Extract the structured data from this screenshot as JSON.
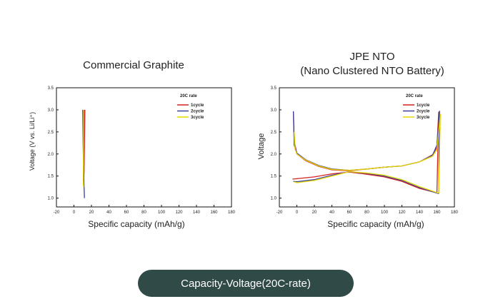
{
  "chart_data": [
    {
      "type": "line",
      "title": "Commercial Graphite",
      "xlabel": "Specific capacity (mAh/g)",
      "ylabel": "Voltage (V vs. Li/Li⁺)",
      "xlim": [
        -20,
        180
      ],
      "ylim": [
        0.8,
        3.5
      ],
      "xticks": [
        "-20",
        "0",
        "20",
        "40",
        "60",
        "80",
        "100",
        "120",
        "140",
        "160",
        "180"
      ],
      "yticks": [
        "1.0",
        "1.5",
        "2.0",
        "2.5",
        "3.0",
        "3.5"
      ],
      "legend_title": "20C rate",
      "legend_position": "top-right",
      "series": [
        {
          "name": "1cycle",
          "color": "#d42020",
          "points": [
            [
              12,
              3.0
            ],
            [
              12,
              2.2
            ],
            [
              11.5,
              1.7
            ],
            [
              11,
              1.3
            ],
            [
              11.5,
              1.6
            ],
            [
              12,
              2.2
            ],
            [
              12.5,
              3.0
            ]
          ]
        },
        {
          "name": "2cycle",
          "color": "#3a3f9e",
          "points": [
            [
              10,
              3.0
            ],
            [
              10.5,
              2.2
            ],
            [
              11,
              1.6
            ],
            [
              12,
              1.0
            ]
          ]
        },
        {
          "name": "3cycle",
          "color": "#e8d800",
          "points": [
            [
              11,
              3.0
            ],
            [
              11,
              2.3
            ],
            [
              10.5,
              1.4
            ],
            [
              11,
              1.25
            ]
          ]
        }
      ]
    },
    {
      "type": "line",
      "title_line1": "JPE NTO",
      "title_line2": "(Nano Clustered NTO Battery)",
      "xlabel": "Specific capacity (mAh/g)",
      "ylabel": "Voltage",
      "xlim": [
        -20,
        180
      ],
      "ylim": [
        0.8,
        3.5
      ],
      "xticks": [
        "-20",
        "0",
        "20",
        "40",
        "60",
        "80",
        "100",
        "120",
        "140",
        "160",
        "180"
      ],
      "yticks": [
        "1.0",
        "1.5",
        "2.0",
        "2.5",
        "3.0",
        "3.5"
      ],
      "legend_title": "20C rate",
      "legend_position": "top-right",
      "series": [
        {
          "name": "1cycle",
          "color": "#d42020",
          "points": [
            [
              -4,
              2.95
            ],
            [
              -3,
              2.3
            ],
            [
              0,
              2.0
            ],
            [
              10,
              1.85
            ],
            [
              25,
              1.72
            ],
            [
              40,
              1.64
            ],
            [
              60,
              1.62
            ],
            [
              80,
              1.66
            ],
            [
              100,
              1.7
            ],
            [
              120,
              1.73
            ],
            [
              140,
              1.82
            ],
            [
              155,
              1.98
            ],
            [
              160,
              2.15
            ],
            [
              162,
              2.95
            ],
            [
              160,
              1.12
            ],
            [
              140,
              1.22
            ],
            [
              120,
              1.38
            ],
            [
              100,
              1.48
            ],
            [
              80,
              1.54
            ],
            [
              60,
              1.59
            ],
            [
              40,
              1.55
            ],
            [
              20,
              1.48
            ],
            [
              0,
              1.44
            ],
            [
              -5,
              1.43
            ]
          ]
        },
        {
          "name": "2cycle",
          "color": "#3a3f9e",
          "points": [
            [
              -4,
              2.97
            ],
            [
              -3,
              2.2
            ],
            [
              0,
              2.02
            ],
            [
              10,
              1.87
            ],
            [
              25,
              1.74
            ],
            [
              40,
              1.66
            ],
            [
              60,
              1.63
            ],
            [
              80,
              1.66
            ],
            [
              100,
              1.7
            ],
            [
              120,
              1.73
            ],
            [
              140,
              1.82
            ],
            [
              155,
              1.97
            ],
            [
              160,
              2.2
            ],
            [
              163,
              2.97
            ],
            [
              162,
              1.1
            ],
            [
              140,
              1.24
            ],
            [
              120,
              1.4
            ],
            [
              100,
              1.5
            ],
            [
              80,
              1.56
            ],
            [
              60,
              1.6
            ],
            [
              40,
              1.52
            ],
            [
              20,
              1.42
            ],
            [
              0,
              1.37
            ],
            [
              -4,
              1.38
            ]
          ]
        },
        {
          "name": "3cycle",
          "color": "#e8d800",
          "points": [
            [
              -3,
              2.5
            ],
            [
              -2,
              2.1
            ],
            [
              0,
              2.0
            ],
            [
              10,
              1.86
            ],
            [
              25,
              1.73
            ],
            [
              40,
              1.65
            ],
            [
              60,
              1.63
            ],
            [
              80,
              1.66
            ],
            [
              100,
              1.7
            ],
            [
              120,
              1.73
            ],
            [
              140,
              1.82
            ],
            [
              155,
              1.95
            ],
            [
              160,
              2.1
            ],
            [
              164,
              2.9
            ],
            [
              162,
              1.11
            ],
            [
              140,
              1.26
            ],
            [
              120,
              1.42
            ],
            [
              100,
              1.52
            ],
            [
              80,
              1.57
            ],
            [
              60,
              1.6
            ],
            [
              40,
              1.5
            ],
            [
              20,
              1.4
            ],
            [
              0,
              1.35
            ],
            [
              -3,
              1.37
            ]
          ]
        }
      ]
    }
  ],
  "footer": {
    "label": "Capacity-Voltage(20C-rate)"
  }
}
